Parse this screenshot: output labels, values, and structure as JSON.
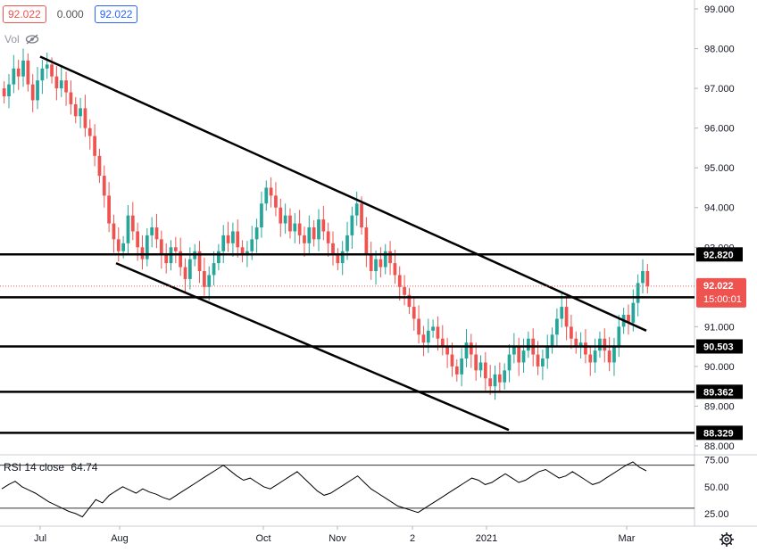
{
  "legend": {
    "open_value": "92.022",
    "change_value": "0.000",
    "close_value": "92.022",
    "vol_label": "Vol"
  },
  "rsi": {
    "label": "RSI 14 close",
    "value": "64.74"
  },
  "colors": {
    "up": "#26a69a",
    "down": "#ef5350",
    "line": "#000000",
    "current_price": "#ef5350",
    "rsi_band": "#333333"
  },
  "chart_data": {
    "type": "candlestick",
    "x_ticks": [
      "Jul",
      "Aug",
      "Oct",
      "Nov",
      "2",
      "2021",
      "Mar"
    ],
    "y_ticks": [
      "99.000",
      "98.000",
      "97.000",
      "96.000",
      "95.000",
      "94.000",
      "93.000",
      "91.000",
      "90.000",
      "89.000",
      "88.000"
    ],
    "ylim": [
      87.8,
      99.2
    ],
    "current_price": {
      "value": "92.022",
      "countdown": "15:00:01"
    },
    "horizontal_levels": [
      {
        "value": 92.82,
        "label": "92.820"
      },
      {
        "value": 91.741,
        "label": "91.741"
      },
      {
        "value": 90.503,
        "label": "90.503"
      },
      {
        "value": 89.362,
        "label": "89.362"
      },
      {
        "value": 88.329,
        "label": "88.329"
      }
    ],
    "trendlines": [
      {
        "from": [
          "Jul",
          97.8
        ],
        "to": [
          "Mar",
          90.9
        ]
      },
      {
        "from": [
          "Aug",
          92.6
        ],
        "to": [
          "2",
          88.4
        ]
      }
    ],
    "series_close": [
      96.8,
      97.1,
      97.5,
      97.3,
      97.7,
      97.1,
      96.7,
      97.2,
      97.5,
      97.6,
      97.3,
      97.0,
      97.2,
      96.9,
      96.6,
      96.3,
      96.5,
      96.0,
      95.8,
      95.3,
      94.8,
      94.3,
      93.6,
      93.2,
      92.9,
      93.1,
      93.8,
      93.4,
      93.0,
      92.7,
      93.3,
      93.5,
      93.2,
      92.8,
      92.6,
      93.0,
      92.9,
      92.5,
      92.2,
      92.7,
      92.9,
      92.4,
      92.0,
      92.3,
      92.6,
      92.9,
      93.3,
      93.1,
      93.4,
      93.0,
      92.8,
      92.9,
      93.2,
      93.5,
      94.1,
      94.5,
      94.3,
      94.0,
      93.6,
      93.8,
      93.4,
      93.6,
      93.3,
      93.1,
      93.5,
      93.2,
      93.7,
      93.4,
      93.1,
      92.8,
      92.6,
      92.9,
      93.3,
      93.8,
      94.1,
      93.5,
      92.8,
      92.4,
      92.7,
      92.5,
      92.9,
      92.6,
      92.3,
      92.0,
      91.8,
      91.5,
      91.2,
      90.8,
      90.6,
      90.9,
      91.0,
      90.7,
      90.5,
      90.3,
      90.0,
      89.8,
      90.2,
      90.6,
      90.3,
      89.9,
      90.1,
      89.7,
      89.5,
      89.8,
      89.6,
      89.9,
      90.3,
      90.5,
      90.1,
      90.4,
      90.7,
      90.3,
      90.0,
      90.2,
      90.5,
      90.8,
      91.2,
      91.5,
      91.0,
      90.7,
      90.5,
      90.6,
      90.3,
      90.1,
      90.4,
      90.7,
      90.4,
      90.1,
      90.5,
      91.0,
      91.3,
      91.1,
      91.6,
      92.1,
      92.4,
      92.02
    ],
    "rsi_series": [
      48,
      52,
      55,
      50,
      47,
      44,
      40,
      36,
      33,
      30,
      27,
      25,
      22,
      30,
      38,
      35,
      42,
      46,
      50,
      47,
      44,
      48,
      45,
      43,
      40,
      38,
      42,
      46,
      50,
      54,
      58,
      62,
      66,
      70,
      65,
      60,
      56,
      58,
      54,
      50,
      48,
      52,
      56,
      60,
      64,
      58,
      52,
      46,
      42,
      44,
      48,
      52,
      56,
      60,
      54,
      48,
      44,
      40,
      36,
      32,
      30,
      28,
      26,
      30,
      34,
      38,
      42,
      46,
      50,
      54,
      58,
      56,
      52,
      54,
      58,
      62,
      58,
      54,
      56,
      60,
      64,
      66,
      62,
      58,
      60,
      64,
      60,
      56,
      52,
      54,
      58,
      62,
      66,
      70,
      73,
      68,
      64.74
    ],
    "rsi_ylim": [
      15,
      78
    ],
    "rsi_ticks": [
      "75.00",
      "50.00",
      "25.00"
    ],
    "rsi_bands": [
      70,
      30
    ]
  }
}
